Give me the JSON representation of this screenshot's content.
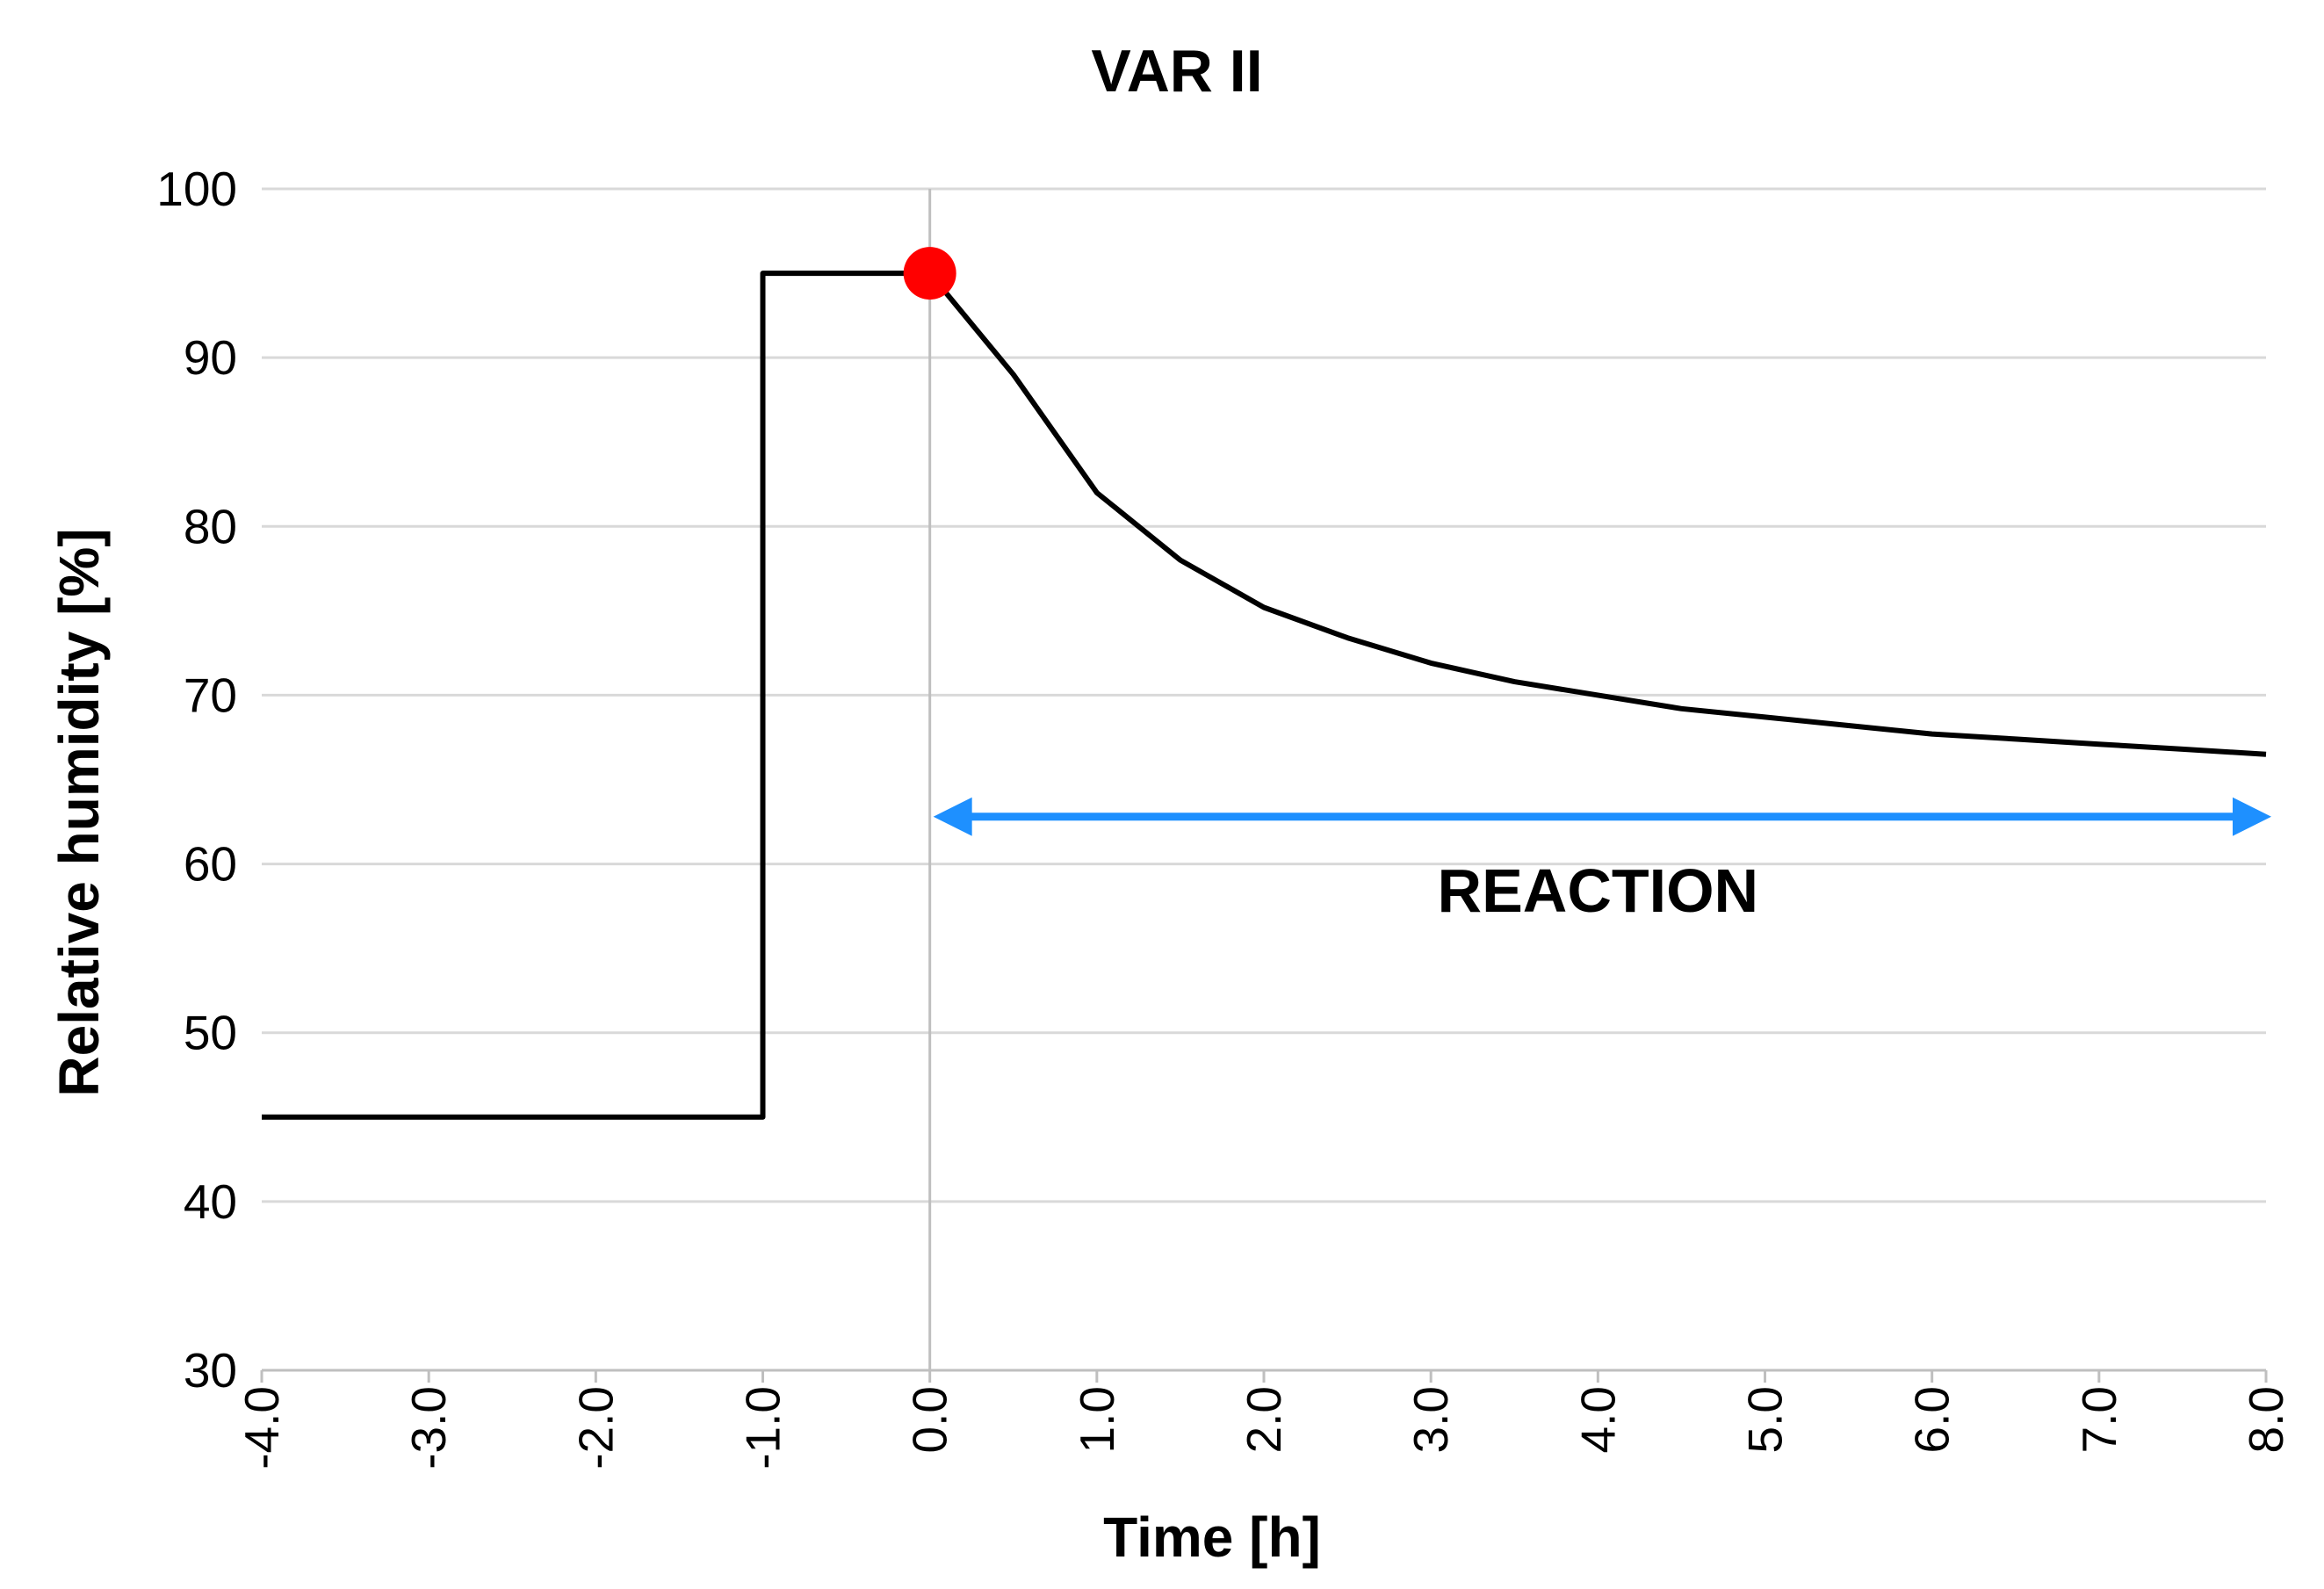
{
  "chart_data": {
    "type": "line",
    "title": "VAR II",
    "xlabel": "Time [h]",
    "ylabel": "Relative humidity [%]",
    "xlim": [
      -4.0,
      8.0
    ],
    "ylim": [
      30,
      100
    ],
    "x_ticks": [
      -4.0,
      -3.0,
      -2.0,
      -1.0,
      0.0,
      1.0,
      2.0,
      3.0,
      4.0,
      5.0,
      6.0,
      7.0,
      8.0
    ],
    "x_tick_labels": [
      "-4.0",
      "-3.0",
      "-2.0",
      "-1.0",
      "0.0",
      "1.0",
      "2.0",
      "3.0",
      "4.0",
      "5.0",
      "6.0",
      "7.0",
      "8.0"
    ],
    "y_ticks": [
      30,
      40,
      50,
      60,
      70,
      80,
      90,
      100
    ],
    "y_tick_labels": [
      "30",
      "40",
      "50",
      "60",
      "70",
      "80",
      "90",
      "100"
    ],
    "grid": "horizontal",
    "reference_line_x": 0.0,
    "series": [
      {
        "name": "Relative humidity",
        "color": "#000000",
        "x": [
          -4.0,
          -1.0,
          -1.0,
          0.0,
          0.5,
          1.0,
          1.5,
          2.0,
          2.5,
          3.0,
          3.5,
          4.0,
          4.5,
          5.0,
          5.5,
          6.0,
          6.5,
          7.0,
          7.5,
          8.0
        ],
        "y": [
          45,
          45,
          95,
          95,
          89,
          82,
          78,
          75.2,
          73.4,
          71.9,
          70.8,
          70.0,
          69.2,
          68.7,
          68.2,
          67.7,
          67.4,
          67.1,
          66.8,
          66.5
        ]
      }
    ],
    "marker": {
      "x": 0.0,
      "y": 95,
      "color": "#ff0000"
    },
    "annotation": {
      "label": "REACTION",
      "x_start": 0.0,
      "x_end": 8.0,
      "y": 62.8,
      "color": "#1e90ff"
    }
  }
}
